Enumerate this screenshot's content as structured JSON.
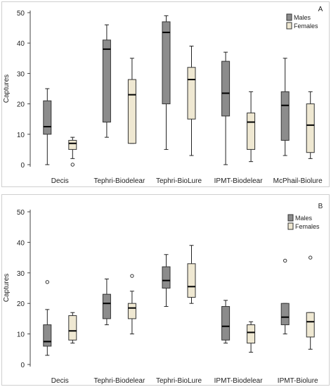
{
  "chart_data": [
    {
      "type": "boxplot",
      "panel_label": "A",
      "ylabel": "Captures",
      "ylim": [
        0,
        50
      ],
      "yticks": [
        0,
        10,
        20,
        30,
        40,
        50
      ],
      "grid": false,
      "legend_position": "top-right",
      "categories": [
        "Decis",
        "Tephri-Biodelear",
        "Tephri-BioLure",
        "IPMT-Biodelear",
        "McPhail-Biolure"
      ],
      "series": [
        {
          "name": "Males",
          "color": "#8c8c8c",
          "boxes": [
            {
              "min": 0,
              "q1": 10,
              "median": 12.5,
              "q3": 21,
              "max": 25,
              "outliers": []
            },
            {
              "min": 9,
              "q1": 14,
              "median": 38,
              "q3": 41,
              "max": 46,
              "outliers": []
            },
            {
              "min": 5,
              "q1": 20,
              "median": 43.5,
              "q3": 47,
              "max": 49,
              "outliers": []
            },
            {
              "min": 0,
              "q1": 16,
              "median": 23.5,
              "q3": 34,
              "max": 37,
              "outliers": []
            },
            {
              "min": 3,
              "q1": 8,
              "median": 19.5,
              "q3": 24,
              "max": 35,
              "outliers": []
            }
          ]
        },
        {
          "name": "Females",
          "color": "#efe8d2",
          "boxes": [
            {
              "min": 2,
              "q1": 5,
              "median": 7,
              "q3": 8,
              "max": 9,
              "outliers": [
                0
              ]
            },
            {
              "min": 7,
              "q1": 7,
              "median": 23,
              "q3": 28,
              "max": 35,
              "outliers": []
            },
            {
              "min": 3,
              "q1": 15,
              "median": 28,
              "q3": 32,
              "max": 39,
              "outliers": []
            },
            {
              "min": 1,
              "q1": 5,
              "median": 14,
              "q3": 17,
              "max": 24,
              "outliers": []
            },
            {
              "min": 2,
              "q1": 4,
              "median": 13,
              "q3": 20,
              "max": 24,
              "outliers": []
            }
          ]
        }
      ]
    },
    {
      "type": "boxplot",
      "panel_label": "B",
      "ylabel": "Captures",
      "ylim": [
        0,
        50
      ],
      "yticks": [
        0,
        10,
        20,
        30,
        40,
        50
      ],
      "grid": false,
      "legend_position": "top-right",
      "categories": [
        "Decis",
        "Tephri-Biodelear",
        "Tephri-BioLure",
        "IPMT-Biodelear",
        "IPMT-Biolure"
      ],
      "series": [
        {
          "name": "Males",
          "color": "#8c8c8c",
          "boxes": [
            {
              "min": 3,
              "q1": 6,
              "median": 7.5,
              "q3": 13,
              "max": 18,
              "outliers": [
                27
              ]
            },
            {
              "min": 13,
              "q1": 15,
              "median": 20,
              "q3": 23,
              "max": 28,
              "outliers": []
            },
            {
              "min": 19,
              "q1": 25,
              "median": 27.5,
              "q3": 32,
              "max": 36,
              "outliers": []
            },
            {
              "min": 7,
              "q1": 8,
              "median": 12.5,
              "q3": 19,
              "max": 21,
              "outliers": []
            },
            {
              "min": 10,
              "q1": 13,
              "median": 15.5,
              "q3": 20,
              "max": 20,
              "outliers": [
                34
              ]
            }
          ]
        },
        {
          "name": "Females",
          "color": "#efe8d2",
          "boxes": [
            {
              "min": 7,
              "q1": 8,
              "median": 11,
              "q3": 16,
              "max": 17,
              "outliers": []
            },
            {
              "min": 10,
              "q1": 15,
              "median": 18.5,
              "q3": 20,
              "max": 24,
              "outliers": [
                29
              ]
            },
            {
              "min": 20,
              "q1": 22,
              "median": 25.5,
              "q3": 33,
              "max": 39,
              "outliers": []
            },
            {
              "min": 4,
              "q1": 7,
              "median": 10.5,
              "q3": 13,
              "max": 14,
              "outliers": []
            },
            {
              "min": 5,
              "q1": 9,
              "median": 14,
              "q3": 17,
              "max": 17,
              "outliers": [
                35
              ]
            }
          ]
        }
      ]
    }
  ]
}
